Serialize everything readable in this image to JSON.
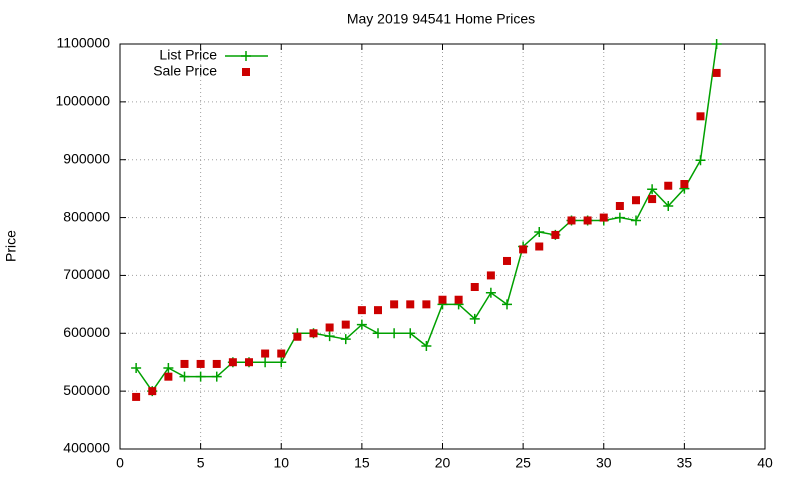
{
  "chart_data": {
    "type": "line",
    "title": "May 2019 94541 Home Prices",
    "y_label": "Price",
    "x": [
      1,
      2,
      3,
      4,
      5,
      6,
      7,
      8,
      9,
      10,
      11,
      12,
      13,
      14,
      15,
      16,
      17,
      18,
      19,
      20,
      21,
      22,
      23,
      24,
      25,
      26,
      27,
      28,
      29,
      30,
      31,
      32,
      33,
      34,
      35,
      36,
      37
    ],
    "series": [
      {
        "name": "List Price",
        "color": "#00a000",
        "line": true,
        "marker": "plus",
        "values": [
          540000,
          500000,
          540000,
          525000,
          525000,
          525000,
          550000,
          550000,
          550000,
          550000,
          600000,
          600000,
          595000,
          590000,
          615000,
          600000,
          600000,
          600000,
          578000,
          650000,
          650000,
          625000,
          670000,
          650000,
          750000,
          775000,
          770000,
          795000,
          795000,
          795000,
          800000,
          795000,
          849000,
          820000,
          850000,
          899000,
          1100000
        ]
      },
      {
        "name": "Sale Price",
        "color": "#cc0000",
        "line": false,
        "marker": "square",
        "values": [
          490000,
          500000,
          525000,
          547000,
          547000,
          547000,
          550000,
          550000,
          565000,
          565000,
          594000,
          600000,
          610000,
          615000,
          640000,
          640000,
          650000,
          650000,
          650000,
          658000,
          658000,
          680000,
          700000,
          725000,
          745000,
          750000,
          770000,
          795000,
          795000,
          800000,
          820000,
          830000,
          832000,
          855000,
          858000,
          975000,
          1050000
        ]
      }
    ],
    "xlim": [
      0,
      40
    ],
    "xticks": [
      0,
      5,
      10,
      15,
      20,
      25,
      30,
      35,
      40
    ],
    "ylim": [
      400000,
      1100000
    ],
    "yticks": [
      400000,
      500000,
      600000,
      700000,
      800000,
      900000,
      1000000,
      1100000
    ],
    "grid": true,
    "legend": "top-left"
  }
}
